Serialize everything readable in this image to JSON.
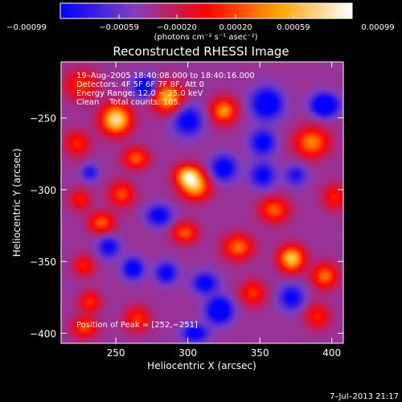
{
  "chart_data": {
    "type": "heatmap",
    "title": "Reconstructed RHESSI Image",
    "xlabel": "Heliocentric X (arcsec)",
    "ylabel": "Heliocentric Y (arcsec)",
    "xlim": [
      212,
      408
    ],
    "ylim": [
      -407,
      -211
    ],
    "x_ticks": [
      250,
      300,
      350,
      400
    ],
    "y_ticks": [
      -250,
      -300,
      -350,
      -400
    ],
    "x_tick_labels": [
      "250",
      "300",
      "350",
      "400"
    ],
    "y_tick_labels": [
      "−250",
      "−300",
      "−350",
      "−400"
    ],
    "colorbar": {
      "min": -0.00099,
      "max": 0.00099,
      "tick_values": [
        -0.00099,
        -0.00059,
        -0.0002,
        0.0002,
        0.00059,
        0.00099
      ],
      "tick_labels": [
        "−0.00099",
        "−0.00059",
        "−0.00020",
        "0.00020",
        "0.00059",
        "0.00099"
      ],
      "unit_label": "(photons cm⁻² s⁻¹ asec⁻²)",
      "colors": [
        "#0000ff",
        "#7f3fbf",
        "#ff0000",
        "#ffa500",
        "#ffffff"
      ]
    },
    "annotations": [
      "19–Aug–2005 18:40:08.000 to 18:40:16.000",
      "Detectors: 4F 5F 6F 7F 8F, Att 0",
      "Energy Range: 12.0 − 25.0 keV",
      "Clean    Total counts: 105."
    ],
    "peak_label": "Position of Peak = [252,−251]",
    "peak": [
      252,
      -251
    ],
    "sources": [
      {
        "x": 250,
        "y": -251,
        "sx": 7,
        "sy": 7,
        "amp": 1.0
      },
      {
        "x": 226,
        "y": -227,
        "sx": 8,
        "sy": 7,
        "amp": 0.45
      },
      {
        "x": 286,
        "y": -236,
        "sx": 7,
        "sy": 7,
        "amp": 0.8
      },
      {
        "x": 223,
        "y": -268,
        "sx": 6,
        "sy": 6,
        "amp": 0.42
      },
      {
        "x": 264,
        "y": -278,
        "sx": 6,
        "sy": 5,
        "amp": 0.55
      },
      {
        "x": 300,
        "y": -290,
        "sx": 6,
        "sy": 5,
        "amp": 0.85
      },
      {
        "x": 325,
        "y": -245,
        "sx": 6,
        "sy": 6,
        "amp": 0.7
      },
      {
        "x": 386,
        "y": -267,
        "sx": 8,
        "sy": 7,
        "amp": 0.65
      },
      {
        "x": 254,
        "y": -303,
        "sx": 6,
        "sy": 6,
        "amp": 0.5
      },
      {
        "x": 305,
        "y": -298,
        "sx": 7,
        "sy": 6,
        "amp": 0.75
      },
      {
        "x": 225,
        "y": -307,
        "sx": 5,
        "sy": 5,
        "amp": 0.38
      },
      {
        "x": 360,
        "y": -314,
        "sx": 7,
        "sy": 6,
        "amp": 0.55
      },
      {
        "x": 402,
        "y": -305,
        "sx": 6,
        "sy": 6,
        "amp": 0.4
      },
      {
        "x": 240,
        "y": -323,
        "sx": 6,
        "sy": 5,
        "amp": 0.55
      },
      {
        "x": 298,
        "y": -330,
        "sx": 6,
        "sy": 5,
        "amp": 0.55
      },
      {
        "x": 335,
        "y": -340,
        "sx": 7,
        "sy": 6,
        "amp": 0.6
      },
      {
        "x": 372,
        "y": -348,
        "sx": 6,
        "sy": 6,
        "amp": 0.9
      },
      {
        "x": 395,
        "y": -360,
        "sx": 6,
        "sy": 6,
        "amp": 0.6
      },
      {
        "x": 228,
        "y": -353,
        "sx": 5,
        "sy": 5,
        "amp": 0.4
      },
      {
        "x": 232,
        "y": -378,
        "sx": 5,
        "sy": 5,
        "amp": 0.45
      },
      {
        "x": 265,
        "y": -390,
        "sx": 6,
        "sy": 6,
        "amp": 0.45
      },
      {
        "x": 345,
        "y": -372,
        "sx": 6,
        "sy": 6,
        "amp": 0.45
      },
      {
        "x": 390,
        "y": -388,
        "sx": 6,
        "sy": 6,
        "amp": 0.4
      },
      {
        "x": 228,
        "y": -396,
        "sx": 6,
        "sy": 5,
        "amp": 0.5
      },
      {
        "x": 270,
        "y": -228,
        "sx": 5,
        "sy": 5,
        "amp": -0.7
      },
      {
        "x": 300,
        "y": -252,
        "sx": 7,
        "sy": 7,
        "amp": -0.55
      },
      {
        "x": 355,
        "y": -240,
        "sx": 7,
        "sy": 7,
        "amp": -0.75
      },
      {
        "x": 395,
        "y": -241,
        "sx": 6,
        "sy": 5,
        "amp": -0.9
      },
      {
        "x": 352,
        "y": -267,
        "sx": 6,
        "sy": 6,
        "amp": -0.55
      },
      {
        "x": 325,
        "y": -285,
        "sx": 6,
        "sy": 6,
        "amp": -0.6
      },
      {
        "x": 280,
        "y": -318,
        "sx": 6,
        "sy": 5,
        "amp": -0.55
      },
      {
        "x": 352,
        "y": -290,
        "sx": 6,
        "sy": 6,
        "amp": -0.5
      },
      {
        "x": 262,
        "y": -355,
        "sx": 5,
        "sy": 5,
        "amp": -0.6
      },
      {
        "x": 285,
        "y": -358,
        "sx": 5,
        "sy": 5,
        "amp": -0.55
      },
      {
        "x": 312,
        "y": -365,
        "sx": 6,
        "sy": 5,
        "amp": -0.55
      },
      {
        "x": 322,
        "y": -384,
        "sx": 6,
        "sy": 6,
        "amp": -0.8
      },
      {
        "x": 245,
        "y": -340,
        "sx": 5,
        "sy": 5,
        "amp": -0.5
      },
      {
        "x": 305,
        "y": -400,
        "sx": 6,
        "sy": 4,
        "amp": -0.6
      },
      {
        "x": 372,
        "y": -375,
        "sx": 6,
        "sy": 6,
        "amp": -0.5
      },
      {
        "x": 232,
        "y": -288,
        "sx": 4,
        "sy": 4,
        "amp": -0.4
      },
      {
        "x": 375,
        "y": -290,
        "sx": 5,
        "sy": 5,
        "amp": -0.4
      }
    ]
  },
  "timestamp": "7–Jul–2013 21:17"
}
